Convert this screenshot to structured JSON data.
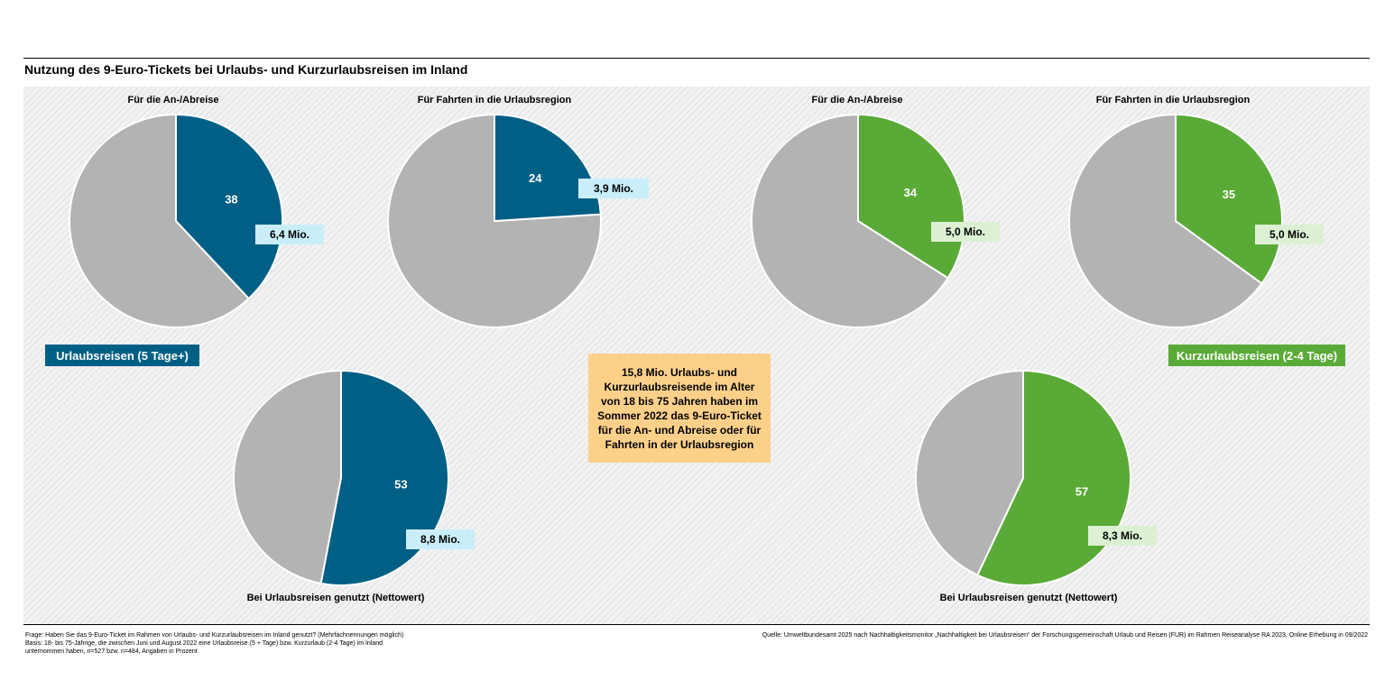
{
  "title": "Nutzung des 9-Euro-Tickets bei Urlaubs- und Kurzurlaubsreisen im Inland",
  "colors": {
    "blue": "#005f85",
    "green": "#5aaa37",
    "gray": "#b3b3b3",
    "callout": "#fdd08a"
  },
  "groups": {
    "left": "Urlaubsreisen (5 Tage+)",
    "right": "Kurzurlaubsreisen (2-4 Tage)"
  },
  "callout": "15,8 Mio. Urlaubs- und Kurzurlaubsreisende im Alter von 18 bis 75 Jahren haben im Sommer 2022 das 9-Euro-Ticket für die An- und Abreise oder für Fahrten in der Urlaubsregion",
  "chart_data": [
    {
      "type": "pie",
      "group": "Urlaubsreisen (5 Tage+)",
      "title": "Für die An-/Abreise",
      "value": 38,
      "remainder": 62,
      "label": "38",
      "absolute": "6,4 Mio.",
      "color": "blue"
    },
    {
      "type": "pie",
      "group": "Urlaubsreisen (5 Tage+)",
      "title": "Für Fahrten in die Urlaubsregion",
      "value": 24,
      "remainder": 76,
      "label": "24",
      "absolute": "3,9 Mio.",
      "color": "blue"
    },
    {
      "type": "pie",
      "group": "Kurzurlaubsreisen (2-4 Tage)",
      "title": "Für die An-/Abreise",
      "value": 34,
      "remainder": 66,
      "label": "34",
      "absolute": "5,0 Mio.",
      "color": "green"
    },
    {
      "type": "pie",
      "group": "Kurzurlaubsreisen (2-4 Tage)",
      "title": "Für Fahrten in die Urlaubsregion",
      "value": 35,
      "remainder": 65,
      "label": "35",
      "absolute": "5,0 Mio.",
      "color": "green"
    },
    {
      "type": "pie",
      "group": "Urlaubsreisen (5 Tage+)",
      "title": "Bei Urlaubsreisen genutzt (Nettowert)",
      "value": 53,
      "remainder": 47,
      "label": "53",
      "absolute": "8,8 Mio.",
      "color": "blue"
    },
    {
      "type": "pie",
      "group": "Kurzurlaubsreisen (2-4 Tage)",
      "title": "Bei Urlaubsreisen genutzt (Nettowert)",
      "value": 57,
      "remainder": 43,
      "label": "57",
      "absolute": "8,3 Mio.",
      "color": "green"
    }
  ],
  "footnote_left": [
    "Frage: Haben Sie das 9-Euro-Ticket im Rahmen von Urlaubs- und Kurzurlaubsreisen im Inland genutzt? (Mehrfachnennungen möglich)",
    "Basis: 18- bis 75-Jährige, die zwischen Juni und August 2022 eine Urlaubsreise (5 + Tage) bzw. Kurzurlaub (2-4 Tage) im Inland",
    "unternommen haben, n=527 bzw. n=484, Angaben in Prozent"
  ],
  "footnote_right": "Quelle: Umweltbundesamt 2025 nach Nachhaltigkeitsmonitor „Nachhaltigkeit bei Urlaubsreisen“ der Forschungsgemeinschaft Urlaub und Reisen (FUR) im Rahmen Reiseanalyse RA 2023, Online Erhebung in 09/2022"
}
